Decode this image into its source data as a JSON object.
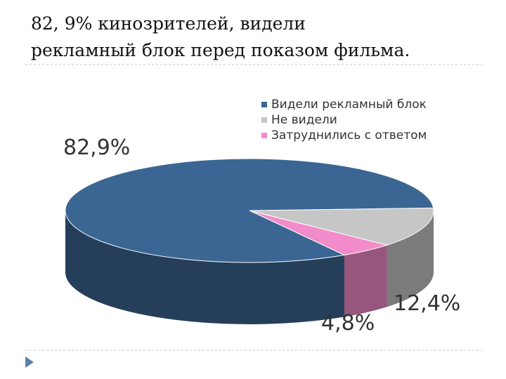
{
  "chart_data": {
    "type": "pie",
    "title": [
      "82, 9% кинозрителей, видели",
      "рекламный блок перед показом фильма."
    ],
    "categories": [
      "Видели рекламный блок",
      "Не видели",
      "Затруднились с ответом"
    ],
    "values": [
      82.9,
      12.4,
      4.8
    ],
    "value_labels": [
      "82,9%",
      "12,4%",
      "4,8%"
    ],
    "colors": [
      "#3b6693",
      "#c6c6c6",
      "#f28bc9"
    ],
    "legend": "top-right"
  }
}
